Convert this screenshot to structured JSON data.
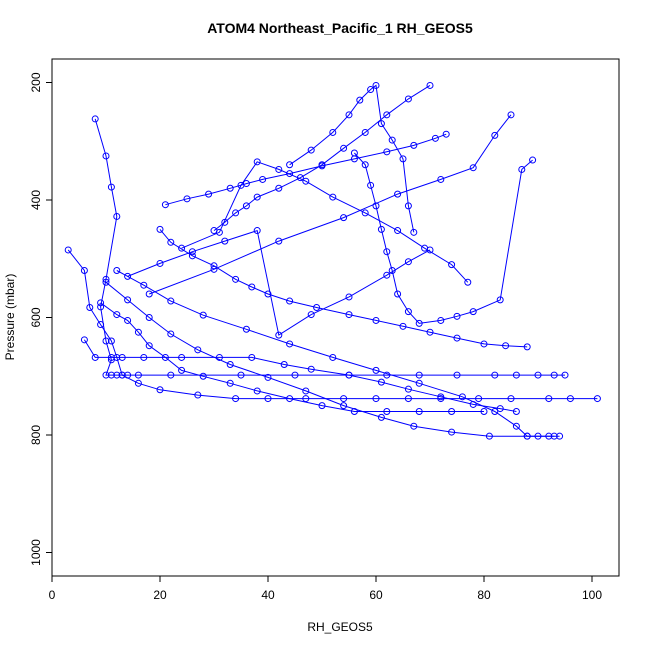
{
  "chart_data": {
    "type": "line",
    "title": "ATOM4 Northeast_Pacific_1 RH_GEOS5",
    "xlabel": "RH_GEOS5",
    "ylabel": "Pressure (mbar)",
    "xlim": [
      0,
      105
    ],
    "ylim": [
      1040,
      160
    ],
    "y_axis_reversed": true,
    "x_ticks": [
      0,
      20,
      40,
      60,
      80,
      100
    ],
    "y_ticks": [
      200,
      400,
      600,
      800,
      1000
    ],
    "grid": false,
    "legend": "none",
    "marker": "open-circle",
    "color": "#0000ff",
    "series": [
      {
        "x": [
          8,
          10,
          11,
          12,
          10,
          9,
          10,
          11,
          10,
          11,
          12,
          13,
          14,
          16,
          22,
          35,
          45,
          55,
          62,
          68,
          75,
          82,
          86,
          90,
          93,
          95
        ],
        "y": [
          262,
          325,
          378,
          428,
          535,
          582,
          640,
          672,
          698,
          698,
          698,
          698,
          698,
          698,
          698,
          698,
          698,
          698,
          698,
          698,
          698,
          698,
          698,
          698,
          698,
          698
        ]
      },
      {
        "x": [
          3,
          6,
          7,
          9,
          11,
          12,
          13,
          16,
          20,
          27,
          34,
          40,
          47,
          54,
          60,
          66,
          72,
          79,
          85,
          92,
          96,
          101
        ],
        "y": [
          485,
          520,
          583,
          612,
          640,
          668,
          698,
          712,
          723,
          732,
          738,
          738,
          738,
          738,
          738,
          738,
          738,
          738,
          738,
          738,
          738,
          738
        ]
      },
      {
        "x": [
          6,
          8,
          11,
          13,
          17,
          24,
          31,
          37,
          43,
          48,
          55,
          61,
          66,
          72,
          78,
          83,
          86
        ],
        "y": [
          638,
          668,
          668,
          668,
          668,
          668,
          668,
          668,
          680,
          688,
          698,
          710,
          722,
          735,
          748,
          755,
          760
        ]
      },
      {
        "x": [
          9,
          12,
          14,
          16,
          18,
          21,
          24,
          28,
          33,
          38,
          44,
          50,
          56,
          62,
          68,
          74,
          80
        ],
        "y": [
          575,
          595,
          605,
          625,
          648,
          668,
          690,
          700,
          712,
          725,
          738,
          750,
          760,
          760,
          760,
          760,
          760
        ]
      },
      {
        "x": [
          10,
          14,
          18,
          22,
          27,
          33,
          40,
          47,
          54,
          61,
          67,
          74,
          81,
          88,
          93
        ],
        "y": [
          540,
          570,
          600,
          628,
          655,
          680,
          702,
          725,
          750,
          770,
          785,
          795,
          802,
          802,
          802
        ]
      },
      {
        "x": [
          12,
          17,
          22,
          28,
          36,
          44,
          52,
          60,
          68,
          76,
          82,
          86,
          88,
          90,
          92,
          94
        ],
        "y": [
          520,
          545,
          572,
          596,
          620,
          645,
          668,
          690,
          712,
          735,
          760,
          785,
          802,
          802,
          802,
          802
        ]
      },
      {
        "x": [
          14,
          20,
          26,
          32,
          38,
          42,
          48,
          55,
          62,
          66,
          70
        ],
        "y": [
          530,
          508,
          488,
          470,
          452,
          630,
          595,
          565,
          528,
          505,
          485
        ]
      },
      {
        "x": [
          20,
          22,
          26,
          30,
          34,
          37,
          40,
          44,
          49,
          55,
          60,
          65,
          70,
          75,
          80,
          84,
          88
        ],
        "y": [
          450,
          472,
          495,
          512,
          535,
          548,
          560,
          572,
          583,
          595,
          605,
          615,
          625,
          635,
          645,
          648,
          650
        ]
      },
      {
        "x": [
          21,
          25,
          29,
          33,
          36,
          39,
          44,
          50,
          56,
          62,
          67,
          71,
          73
        ],
        "y": [
          408,
          398,
          390,
          380,
          372,
          365,
          355,
          342,
          330,
          318,
          307,
          295,
          288
        ]
      },
      {
        "x": [
          30,
          32,
          34,
          36,
          38,
          42,
          46,
          50,
          54,
          58,
          62,
          66,
          70
        ],
        "y": [
          452,
          438,
          422,
          410,
          395,
          380,
          362,
          340,
          312,
          285,
          255,
          228,
          205
        ]
      },
      {
        "x": [
          44,
          48,
          52,
          55,
          57,
          59,
          60,
          61,
          63,
          65,
          66,
          67
        ],
        "y": [
          340,
          315,
          285,
          255,
          230,
          212,
          205,
          270,
          298,
          330,
          410,
          455
        ]
      },
      {
        "x": [
          56,
          58,
          59,
          60,
          61,
          62,
          63,
          64,
          66,
          68,
          72,
          75,
          78,
          83,
          87,
          89
        ],
        "y": [
          320,
          340,
          375,
          410,
          450,
          488,
          520,
          560,
          590,
          610,
          605,
          598,
          590,
          570,
          348,
          332
        ]
      },
      {
        "x": [
          18,
          30,
          42,
          54,
          64,
          72,
          78,
          82,
          85
        ],
        "y": [
          560,
          518,
          470,
          430,
          390,
          365,
          345,
          290,
          255
        ]
      },
      {
        "x": [
          24,
          31,
          35,
          38,
          42,
          47,
          52,
          58,
          64,
          69,
          74,
          77
        ],
        "y": [
          482,
          455,
          375,
          335,
          348,
          368,
          395,
          422,
          452,
          482,
          510,
          540
        ]
      }
    ]
  }
}
